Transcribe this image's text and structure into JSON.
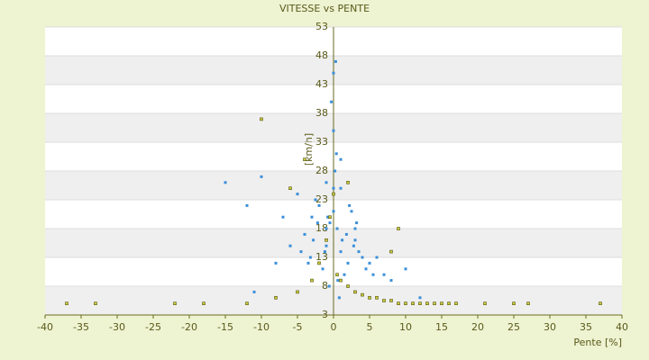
{
  "chart_data": {
    "type": "scatter",
    "title": "VITESSE vs PENTE",
    "x_label": "Pente [%]",
    "y_label": "[km/h]",
    "xlim": [
      -40,
      40
    ],
    "xticks": [
      -40,
      -35,
      -30,
      -25,
      -20,
      -15,
      -10,
      -5,
      0,
      5,
      10,
      15,
      20,
      25,
      30,
      35,
      40
    ],
    "ylim": [
      3,
      53
    ],
    "yticks": [
      3,
      8,
      13,
      18,
      23,
      28,
      33,
      38,
      43,
      48,
      53
    ],
    "grid": true,
    "series": [
      {
        "color": "#3b8fd9",
        "x": [
          -1,
          0.5,
          2,
          -3,
          1,
          3,
          -2,
          0,
          4,
          -4,
          1.5,
          -0.5,
          2.5,
          -1.5,
          3.5,
          5,
          -5,
          0.2,
          1.2,
          -2.5,
          6,
          -6,
          2,
          -1,
          0,
          3,
          -3.5,
          4.5,
          -0.8,
          1.8,
          7,
          -7,
          0.6,
          -1.2,
          2.2,
          -2.2,
          8,
          -8,
          0.3,
          1,
          -0.3,
          -10,
          -12,
          -15,
          10,
          12,
          -4.5,
          5.5,
          0.8,
          -0.6,
          2.8,
          -2.8,
          1,
          0,
          -1,
          0.4,
          3.2,
          -3.2,
          0,
          -11
        ],
        "values": [
          15,
          18,
          12,
          20,
          14,
          16,
          22,
          25,
          13,
          17,
          10,
          19,
          21,
          11,
          14,
          12,
          24,
          28,
          16,
          23,
          13,
          15,
          8,
          26,
          35,
          18,
          12,
          11,
          20,
          17,
          10,
          20,
          9,
          14,
          22,
          19,
          9,
          12,
          47,
          30,
          40,
          27,
          22,
          26,
          11,
          6,
          14,
          10,
          6,
          8,
          15,
          16,
          25,
          21,
          18,
          31,
          19,
          13,
          45,
          7
        ]
      },
      {
        "color": "#c9c93a",
        "x": [
          -37,
          -33,
          -22,
          -18,
          -12,
          -8,
          -5,
          -3,
          -2,
          -1,
          -0.5,
          0,
          0.5,
          1,
          2,
          3,
          4,
          5,
          6,
          7,
          8,
          9,
          10,
          11,
          12,
          13,
          14,
          15,
          16,
          17,
          21,
          25,
          27,
          37,
          -6,
          -4,
          8,
          9,
          -10,
          2
        ],
        "values": [
          5,
          5,
          5,
          5,
          5,
          6,
          7,
          9,
          12,
          16,
          20,
          24,
          10,
          9,
          8,
          7,
          6.5,
          6,
          6,
          5.5,
          5.5,
          5,
          5,
          5,
          5,
          5,
          5,
          5,
          5,
          5,
          5,
          5,
          5,
          5,
          25,
          30,
          14,
          18,
          37,
          26
        ]
      }
    ]
  }
}
